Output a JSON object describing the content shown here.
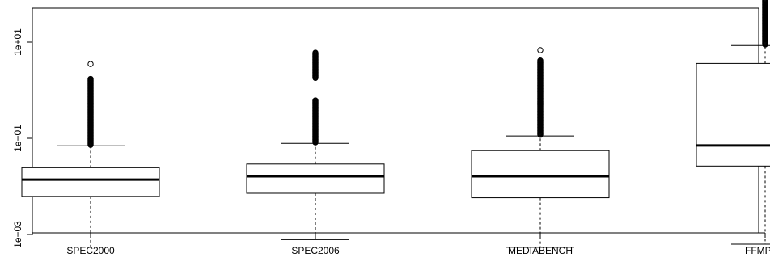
{
  "chart_data": {
    "type": "box",
    "title": "",
    "xlabel": "",
    "ylabel": "",
    "yscale": "log10",
    "ylim": [
      0.00042,
      200
    ],
    "categories": [
      "SPEC2000",
      "SPEC2006",
      "MEDIABENCH",
      "FFMPEG"
    ],
    "yticks": [
      0.001,
      0.1,
      10
    ],
    "ytick_labels": [
      "1e−03",
      "1e−01",
      "1e+01"
    ],
    "grid": false,
    "legend": "none",
    "boxes": [
      {
        "name": "SPEC2000",
        "whisker_low": 0.00055,
        "q1": 0.0062,
        "median": 0.0138,
        "q3": 0.0245,
        "whisker_high": 0.07,
        "outlier_range": [
          0.073,
          1.75
        ],
        "outlier_max": 3.5
      },
      {
        "name": "SPEC2006",
        "whisker_low": 0.00078,
        "q1": 0.0072,
        "median": 0.0162,
        "q3": 0.0292,
        "whisker_high": 0.0785,
        "outlier_range": [
          0.082,
          0.62
        ],
        "outlier_upper_range": [
          1.8,
          6.2
        ]
      },
      {
        "name": "MEDIABENCH",
        "whisker_low": 0.00054,
        "q1": 0.0058,
        "median": 0.0162,
        "q3": 0.0555,
        "whisker_high": 0.112,
        "outlier_range": [
          0.118,
          4.2
        ],
        "outlier_max": 6.8
      },
      {
        "name": "FFMPEG",
        "whisker_low": 0.00063,
        "q1": 0.0265,
        "median": 0.071,
        "q3": 3.6,
        "whisker_high": 8.5,
        "outlier_range": [
          8.9,
          75
        ],
        "outlier_max": 115
      }
    ],
    "colors": {
      "line": "#000000",
      "background": "#ffffff"
    }
  }
}
